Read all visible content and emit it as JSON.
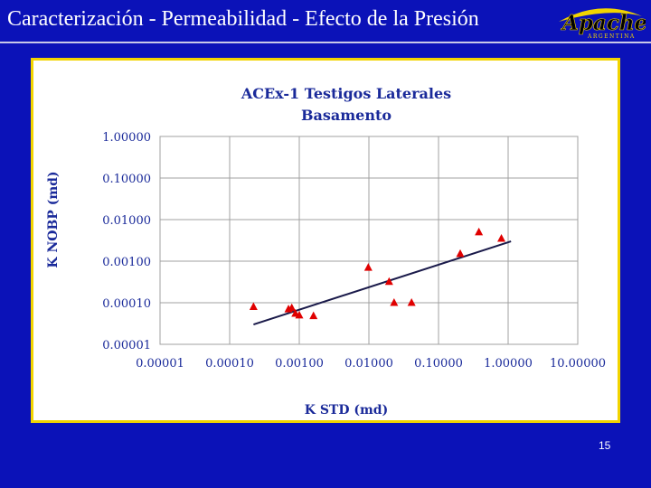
{
  "slide": {
    "title": "Caracterización - Permeabilidad - Efecto de la Presión",
    "page_number": "15"
  },
  "logo": {
    "text": "Apache",
    "subtext": "ARGENTINA"
  },
  "colors": {
    "background": "#0b12b8",
    "frame_border": "#f2d400",
    "markers": "#e00000",
    "trendline": "#1a1a4a",
    "axis_text": "#1a2a9a"
  },
  "chart_data": {
    "type": "scatter",
    "title": "ACEx-1 Testigos Laterales",
    "subtitle": "Basamento",
    "xlabel": "K STD (md)",
    "ylabel": "K NOBP (md)",
    "x_scale": "log",
    "y_scale": "log",
    "xlim": [
      1e-05,
      10
    ],
    "ylim": [
      1e-05,
      1
    ],
    "x_tick_labels": [
      "0.00001",
      "0.00010",
      "0.00100",
      "0.01000",
      "0.10000",
      "1.00000",
      "10.00000"
    ],
    "y_tick_labels": [
      "0.00001",
      "0.00010",
      "0.00100",
      "0.01000",
      "0.10000",
      "1.00000"
    ],
    "grid": true,
    "marker": "triangle",
    "points": [
      {
        "x": 0.00022,
        "y": 8e-05
      },
      {
        "x": 0.0007,
        "y": 7e-05
      },
      {
        "x": 0.00078,
        "y": 7.5e-05
      },
      {
        "x": 0.00088,
        "y": 5.5e-05
      },
      {
        "x": 0.001,
        "y": 5e-05
      },
      {
        "x": 0.0016,
        "y": 4.8e-05
      },
      {
        "x": 0.0098,
        "y": 0.0007
      },
      {
        "x": 0.0195,
        "y": 0.00032
      },
      {
        "x": 0.023,
        "y": 0.0001
      },
      {
        "x": 0.041,
        "y": 0.0001
      },
      {
        "x": 0.205,
        "y": 0.0015
      },
      {
        "x": 0.38,
        "y": 0.005
      },
      {
        "x": 0.8,
        "y": 0.0035
      }
    ],
    "trendline": {
      "x": [
        0.00022,
        1.1
      ],
      "y": [
        3e-05,
        0.003
      ]
    }
  }
}
